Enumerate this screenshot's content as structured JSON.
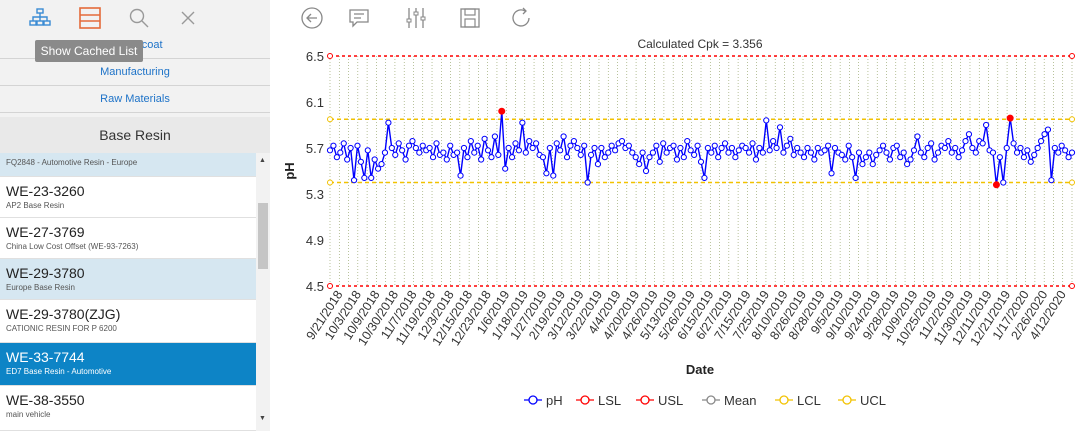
{
  "tooltip": "Show Cached List",
  "nav": [
    "Electrocoat",
    "Manufacturing",
    "Raw Materials"
  ],
  "category": "Base Resin",
  "list": [
    {
      "title": "FQ2848 - Automotive Resin - Europe",
      "sub": "",
      "state": "light",
      "small": true
    },
    {
      "title": "WE-23-3260",
      "sub": "AP2 Base Resin",
      "state": "normal"
    },
    {
      "title": "WE-27-3769",
      "sub": "China Low Cost Offset (WE-93-7263)",
      "state": "normal"
    },
    {
      "title": "WE-29-3780",
      "sub": "Europe Base Resin",
      "state": "light"
    },
    {
      "title": "WE-29-3780(ZJG)",
      "sub": "CATIONIC RESIN FOR P 6200",
      "state": "normal"
    },
    {
      "title": "WE-33-7744",
      "sub": "ED7 Base Resin - Automotive",
      "state": "selected"
    },
    {
      "title": "WE-38-3550",
      "sub": "main vehicle",
      "state": "normal"
    }
  ],
  "icons": {
    "left": [
      "hierarchy-icon",
      "list-icon",
      "search-icon",
      "close-icon"
    ],
    "toolbar": [
      "back-icon",
      "comment-icon",
      "sliders-icon",
      "save-icon",
      "refresh-icon"
    ]
  },
  "colors": {
    "accent": "#0d84c6",
    "ph": "#0000ff",
    "limit": "#ff0000",
    "control": "#f2c200",
    "out": "#ff0000"
  },
  "chart_data": {
    "type": "line",
    "title": "Calculated Cpk = 3.356",
    "xlabel": "Date",
    "ylabel": "pH",
    "ylim": [
      4.5,
      6.5
    ],
    "yticks": [
      6.5,
      6.1,
      5.7,
      5.3,
      4.9,
      4.5
    ],
    "x_tick_labels": [
      "9/21/2018",
      "10/3/2018",
      "10/9/2018",
      "10/30/2018",
      "11/7/2018",
      "11/19/2018",
      "12/3/2018",
      "12/15/2018",
      "12/23/2018",
      "1/6/2019",
      "1/18/2019",
      "1/27/2019",
      "2/19/2019",
      "3/12/2019",
      "3/22/2019",
      "4/4/2019",
      "4/20/2019",
      "4/26/2019",
      "5/13/2019",
      "5/26/2019",
      "6/15/2019",
      "6/27/2019",
      "7/15/2019",
      "7/25/2019",
      "8/10/2019",
      "8/26/2019",
      "8/28/2019",
      "9/5/2019",
      "9/10/2019",
      "9/24/2019",
      "9/28/2019",
      "10/9/2019",
      "10/25/2019",
      "11/2/2019",
      "11/30/2019",
      "12/11/2019",
      "12/21/2019",
      "1/17/2020",
      "2/26/2020",
      "4/12/2020"
    ],
    "lsl": 4.5,
    "usl": 6.5,
    "mean": 5.7,
    "lcl": 5.4,
    "ucl": 5.95,
    "series": [
      {
        "name": "pH",
        "values": [
          5.68,
          5.72,
          5.62,
          5.66,
          5.74,
          5.6,
          5.7,
          5.42,
          5.72,
          5.58,
          5.44,
          5.68,
          5.44,
          5.6,
          5.52,
          5.56,
          5.66,
          5.92,
          5.7,
          5.64,
          5.74,
          5.68,
          5.6,
          5.72,
          5.76,
          5.7,
          5.66,
          5.72,
          5.68,
          5.7,
          5.62,
          5.74,
          5.64,
          5.66,
          5.6,
          5.72,
          5.64,
          5.66,
          5.46,
          5.7,
          5.62,
          5.76,
          5.66,
          5.72,
          5.6,
          5.78,
          5.68,
          5.62,
          5.8,
          5.64,
          6.02,
          5.52,
          5.7,
          5.62,
          5.74,
          5.68,
          5.92,
          5.66,
          5.76,
          5.7,
          5.74,
          5.64,
          5.62,
          5.48,
          5.7,
          5.46,
          5.74,
          5.68,
          5.8,
          5.62,
          5.72,
          5.76,
          5.7,
          5.64,
          5.72,
          5.4,
          5.64,
          5.7,
          5.56,
          5.7,
          5.62,
          5.66,
          5.72,
          5.68,
          5.74,
          5.76,
          5.7,
          5.72,
          5.66,
          5.62,
          5.56,
          5.66,
          5.5,
          5.62,
          5.66,
          5.72,
          5.58,
          5.74,
          5.66,
          5.7,
          5.72,
          5.6,
          5.7,
          5.62,
          5.76,
          5.68,
          5.64,
          5.72,
          5.58,
          5.44,
          5.7,
          5.66,
          5.72,
          5.62,
          5.7,
          5.74,
          5.66,
          5.7,
          5.62,
          5.68,
          5.72,
          5.7,
          5.66,
          5.74,
          5.6,
          5.7,
          5.66,
          5.94,
          5.68,
          5.76,
          5.7,
          5.88,
          5.66,
          5.72,
          5.78,
          5.64,
          5.7,
          5.66,
          5.62,
          5.7,
          5.66,
          5.6,
          5.7,
          5.66,
          5.68,
          5.72,
          5.48,
          5.7,
          5.66,
          5.64,
          5.6,
          5.72,
          5.62,
          5.44,
          5.66,
          5.56,
          5.62,
          5.66,
          5.56,
          5.64,
          5.68,
          5.72,
          5.66,
          5.6,
          5.7,
          5.72,
          5.62,
          5.66,
          5.56,
          5.6,
          5.68,
          5.8,
          5.66,
          5.62,
          5.7,
          5.74,
          5.6,
          5.66,
          5.72,
          5.7,
          5.76,
          5.66,
          5.7,
          5.62,
          5.68,
          5.76,
          5.82,
          5.7,
          5.66,
          5.76,
          5.74,
          5.9,
          5.68,
          5.66,
          5.38,
          5.62,
          5.4,
          5.7,
          5.96,
          5.74,
          5.66,
          5.7,
          5.62,
          5.68,
          5.58,
          5.64,
          5.7,
          5.76,
          5.82,
          5.86,
          5.42,
          5.7,
          5.66,
          5.72,
          5.68,
          5.62,
          5.66
        ]
      }
    ],
    "legend": [
      "pH",
      "LSL",
      "USL",
      "Mean",
      "LCL",
      "UCL"
    ],
    "legend_position": "bottom"
  }
}
